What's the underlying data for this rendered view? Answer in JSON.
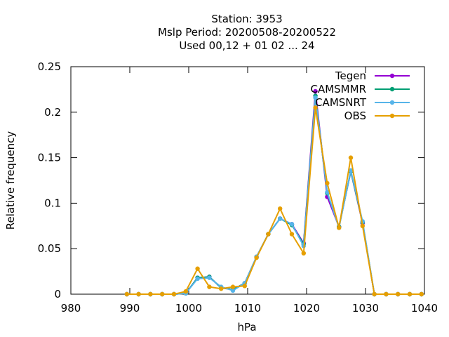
{
  "chart_data": {
    "type": "line",
    "title_lines": [
      "Station:     3953",
      "Mslp  Period: 20200508-20200522",
      "Used  00,12  + 01 02 ... 24"
    ],
    "xlabel": "hPa",
    "ylabel": "Relative frequency",
    "xlim": [
      980,
      1040
    ],
    "ylim": [
      0,
      0.25
    ],
    "xticks": [
      980,
      990,
      1000,
      1010,
      1020,
      1030,
      1040
    ],
    "yticks": [
      0,
      0.05,
      0.1,
      0.15,
      0.2,
      0.25
    ],
    "ytick_labels": [
      "0",
      "0.05",
      "0.1",
      "0.15",
      "0.2",
      "0.25"
    ],
    "grid": false,
    "legend_position": "top-right",
    "x": [
      989.5,
      991.5,
      993.5,
      995.5,
      997.5,
      999.5,
      1001.5,
      1003.5,
      1005.5,
      1007.5,
      1009.5,
      1011.5,
      1013.5,
      1015.5,
      1017.5,
      1019.5,
      1021.5,
      1023.5,
      1025.5,
      1027.5,
      1029.5,
      1031.5,
      1033.5,
      1035.5,
      1037.5,
      1039.5
    ],
    "series": [
      {
        "name": "Tegen",
        "color": "#9400d3",
        "values": [
          0,
          0,
          0,
          0,
          0,
          0.001,
          0.018,
          0.019,
          0.007,
          0.005,
          0.012,
          0.041,
          0.066,
          0.083,
          0.077,
          0.056,
          0.223,
          0.107,
          0.074,
          0.135,
          0.078,
          0,
          0,
          0,
          0,
          0
        ]
      },
      {
        "name": "CAMSMMR",
        "color": "#009e73",
        "values": [
          0,
          0,
          0,
          0,
          0,
          0.001,
          0.018,
          0.019,
          0.007,
          0.005,
          0.012,
          0.041,
          0.066,
          0.083,
          0.076,
          0.055,
          0.218,
          0.111,
          0.074,
          0.135,
          0.079,
          0,
          0,
          0,
          0,
          0
        ]
      },
      {
        "name": "CAMSNRT",
        "color": "#56b4e9",
        "values": [
          0,
          0,
          0,
          0,
          0,
          0.001,
          0.017,
          0.018,
          0.008,
          0.004,
          0.012,
          0.041,
          0.066,
          0.083,
          0.077,
          0.053,
          0.216,
          0.112,
          0.073,
          0.136,
          0.08,
          0,
          0,
          0,
          0,
          0
        ]
      },
      {
        "name": "OBS",
        "color": "#e69f00",
        "values": [
          0,
          0,
          0,
          0,
          0,
          0.003,
          0.028,
          0.008,
          0.006,
          0.008,
          0.009,
          0.04,
          0.066,
          0.094,
          0.066,
          0.045,
          0.205,
          0.122,
          0.073,
          0.15,
          0.075,
          0,
          0,
          0,
          0,
          0
        ]
      }
    ]
  }
}
